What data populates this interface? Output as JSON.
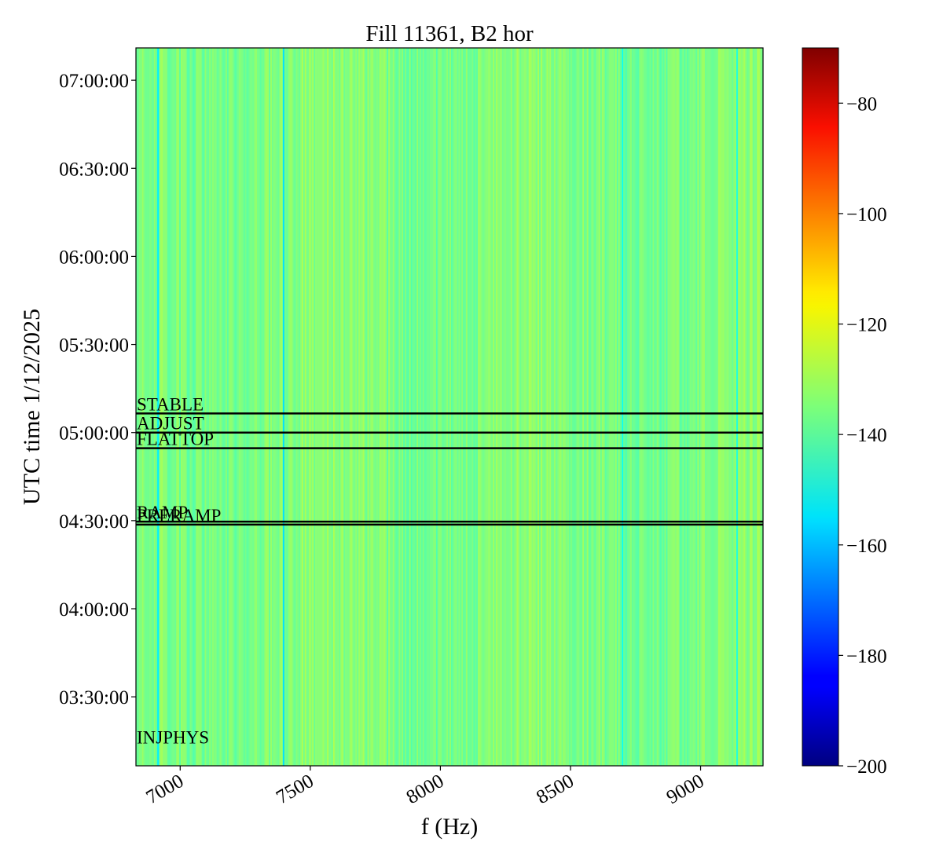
{
  "chart_data": {
    "type": "heatmap",
    "title": "Fill 11361, B2 hor",
    "xlabel": "f (Hz)",
    "ylabel": "UTC time 1/12/2025",
    "xlim": [
      6830,
      9240
    ],
    "x_ticks": [
      7000,
      7500,
      8000,
      8500,
      9000
    ],
    "x_tick_labels": [
      "7000",
      "7500",
      "8000",
      "8500",
      "9000"
    ],
    "ylim_seconds_of_day": [
      11190,
      25860
    ],
    "y_ticks": [
      {
        "label": "03:30:00",
        "sec": 12600
      },
      {
        "label": "04:00:00",
        "sec": 14400
      },
      {
        "label": "04:30:00",
        "sec": 16200
      },
      {
        "label": "05:00:00",
        "sec": 18000
      },
      {
        "label": "05:30:00",
        "sec": 19800
      },
      {
        "label": "06:00:00",
        "sec": 21600
      },
      {
        "label": "06:30:00",
        "sec": 23400
      },
      {
        "label": "07:00:00",
        "sec": 25200
      }
    ],
    "colorbar": {
      "colormap": "jet",
      "range": [
        -200,
        -70
      ],
      "ticks": [
        -200,
        -180,
        -160,
        -140,
        -120,
        -100,
        -80
      ],
      "tick_labels": [
        "−200",
        "−180",
        "−160",
        "−140",
        "−120",
        "−100",
        "−80"
      ]
    },
    "events": [
      {
        "label": "STABLE",
        "time": "05:06:30",
        "sec": 18390
      },
      {
        "label": "ADJUST",
        "time": "05:00:00",
        "sec": 18000
      },
      {
        "label": "FLATTOP",
        "time": "04:54:40",
        "sec": 17680
      },
      {
        "label": "RAMP",
        "time": "04:29:40",
        "sec": 16180
      },
      {
        "label": "PRERAMP",
        "time": "04:28:40",
        "sec": 16120
      },
      {
        "label": "INJPHYS",
        "time": "03:13:00",
        "sec": 11580
      }
    ],
    "features": {
      "background_level_db": -135,
      "strong_lines": [
        {
          "f": 6915,
          "level_db": -153
        },
        {
          "f": 7398,
          "level_db": -155
        },
        {
          "f": 8700,
          "level_db": -150
        },
        {
          "f": 9140,
          "level_db": -148
        }
      ]
    }
  }
}
